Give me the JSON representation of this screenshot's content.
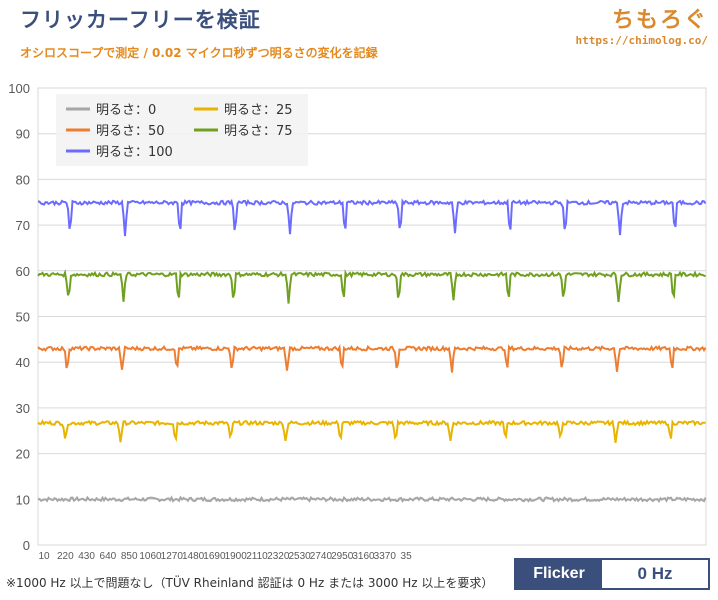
{
  "header": {
    "title": "フリッカーフリーを検証",
    "subtitle": "オシロスコープで測定 / 0.02 マイクロ秒ずつ明るさの変化を記録"
  },
  "brand": {
    "name": "ちもろぐ",
    "url": "https://chimolog.co/"
  },
  "footnote": "※1000 Hz 以上で問題なし（TÜV Rheinland 認証は 0 Hz または 3000 Hz 以上を要求）",
  "badge": {
    "label": "Flicker",
    "value": "0 Hz"
  },
  "colors": {
    "accent": "#3b4f7d",
    "brand": "#d9892e",
    "subtitle": "#e58a1f"
  },
  "chart_data": {
    "type": "line",
    "title": "",
    "xlabel": "",
    "ylabel": "",
    "ylim": [
      0,
      100
    ],
    "yticks": [
      0,
      10,
      20,
      30,
      40,
      50,
      60,
      70,
      80,
      90,
      100
    ],
    "xticks": [
      "10",
      "220",
      "430",
      "640",
      "850",
      "1060",
      "1270",
      "1480",
      "1690",
      "1900",
      "2110",
      "2320",
      "2530",
      "2740",
      "2950",
      "3160",
      "3370",
      "35"
    ],
    "grid": true,
    "legend_position": "top-left",
    "series": [
      {
        "name": "明るさ：0",
        "color": "#a6a6a6",
        "level": 10.0,
        "dip_depth": 0,
        "dip_period": 0
      },
      {
        "name": "明るさ：25",
        "color": "#e8b400",
        "level": 26.7,
        "dip_depth": 4.0,
        "dip_period": 55
      },
      {
        "name": "明るさ：50",
        "color": "#ed7d31",
        "level": 43.0,
        "dip_depth": 5.0,
        "dip_period": 55
      },
      {
        "name": "明るさ：75",
        "color": "#70a020",
        "level": 59.2,
        "dip_depth": 6.0,
        "dip_period": 55
      },
      {
        "name": "明るさ：100",
        "color": "#6b6bff",
        "level": 74.9,
        "dip_depth": 7.0,
        "dip_period": 55
      }
    ]
  }
}
